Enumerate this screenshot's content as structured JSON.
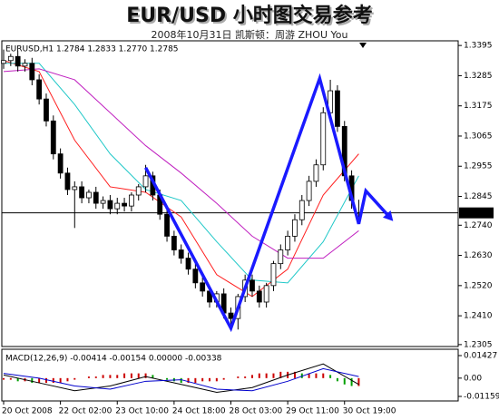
{
  "chart_data": {
    "type": "candlestick",
    "title": "EUR/USD  小时图交易参考",
    "subtitle": "2008年10月31日    凯斯顿：周游  ZHOU  You",
    "header": "EURUSD,H1  1.2784 1.2833 1.2770 1.2785",
    "categories": [
      "20 Oct 2008",
      null,
      null,
      null,
      null,
      null,
      null,
      null,
      "22 Oct 02:00",
      null,
      null,
      null,
      null,
      null,
      null,
      null,
      "23 Oct 10:00",
      null,
      null,
      null,
      null,
      null,
      null,
      null,
      "24 Oct 18:00",
      null,
      null,
      null,
      null,
      null,
      null,
      null,
      "28 Oct 03:00",
      null,
      null,
      null,
      null,
      null,
      null,
      null,
      "29 Oct 11:00",
      null,
      null,
      null,
      null,
      null,
      null,
      null,
      "30 Oct 19:00",
      null,
      null
    ],
    "open": [
      1.333,
      1.334,
      1.3355,
      1.332,
      1.333,
      1.327,
      1.32,
      1.312,
      1.3,
      1.293,
      1.287,
      1.288,
      1.284,
      1.286,
      1.282,
      1.283,
      1.28,
      1.282,
      1.281,
      1.285,
      1.288,
      1.292,
      1.285,
      1.278,
      1.27,
      1.265,
      1.262,
      1.258,
      1.253,
      1.25,
      1.246,
      1.249,
      1.242,
      1.24,
      1.248,
      1.254,
      1.25,
      1.246,
      1.252,
      1.26,
      1.265,
      1.27,
      1.276,
      1.283,
      1.29,
      1.296,
      1.315,
      1.323,
      1.31,
      1.292,
      1.2784
    ],
    "high": [
      1.338,
      1.3365,
      1.3375,
      1.3345,
      1.335,
      1.329,
      1.322,
      1.314,
      1.302,
      1.295,
      1.29,
      1.29,
      1.287,
      1.288,
      1.2845,
      1.285,
      1.284,
      1.284,
      1.286,
      1.289,
      1.296,
      1.2935,
      1.287,
      1.28,
      1.272,
      1.267,
      1.264,
      1.26,
      1.255,
      1.252,
      1.25,
      1.251,
      1.244,
      1.249,
      1.256,
      1.256,
      1.252,
      1.253,
      1.261,
      1.267,
      1.272,
      1.278,
      1.285,
      1.292,
      1.298,
      1.317,
      1.327,
      1.325,
      1.312,
      1.294,
      1.2833
    ],
    "low": [
      1.331,
      1.332,
      1.33,
      1.33,
      1.325,
      1.318,
      1.31,
      1.298,
      1.291,
      1.285,
      1.273,
      1.282,
      1.282,
      1.28,
      1.28,
      1.278,
      1.278,
      1.279,
      1.279,
      1.283,
      1.286,
      1.283,
      1.276,
      1.268,
      1.263,
      1.26,
      1.256,
      1.251,
      1.248,
      1.244,
      1.244,
      1.24,
      1.238,
      1.236,
      1.246,
      1.248,
      1.244,
      1.244,
      1.25,
      1.258,
      1.263,
      1.268,
      1.274,
      1.281,
      1.288,
      1.294,
      1.313,
      1.308,
      1.29,
      1.28,
      1.277
    ],
    "close": [
      1.334,
      1.3355,
      1.332,
      1.333,
      1.327,
      1.32,
      1.312,
      1.3,
      1.293,
      1.287,
      1.288,
      1.284,
      1.286,
      1.282,
      1.283,
      1.28,
      1.282,
      1.281,
      1.285,
      1.288,
      1.292,
      1.285,
      1.278,
      1.27,
      1.265,
      1.262,
      1.258,
      1.253,
      1.25,
      1.246,
      1.249,
      1.242,
      1.24,
      1.248,
      1.254,
      1.25,
      1.246,
      1.252,
      1.26,
      1.265,
      1.27,
      1.276,
      1.283,
      1.29,
      1.296,
      1.315,
      1.323,
      1.31,
      1.292,
      1.283,
      1.2785
    ],
    "up_color": "#ffffff",
    "down_color": "#000000",
    "series": [
      {
        "color": "#ff2020",
        "x": [
          0,
          5,
          10,
          15,
          20,
          25,
          30,
          35,
          40,
          45,
          50
        ],
        "values": [
          1.334,
          1.33,
          1.305,
          1.288,
          1.286,
          1.277,
          1.256,
          1.248,
          1.258,
          1.285,
          1.3
        ]
      },
      {
        "color": "#20c8c8",
        "x": [
          0,
          5,
          10,
          15,
          20,
          25,
          30,
          35,
          40,
          45,
          50
        ],
        "values": [
          1.333,
          1.333,
          1.318,
          1.3,
          1.287,
          1.283,
          1.268,
          1.254,
          1.253,
          1.268,
          1.292
        ]
      },
      {
        "color": "#c020c0",
        "x": [
          0,
          5,
          10,
          15,
          20,
          25,
          30,
          35,
          40,
          45,
          50
        ],
        "values": [
          1.33,
          1.331,
          1.327,
          1.315,
          1.303,
          1.293,
          1.282,
          1.27,
          1.262,
          1.262,
          1.272
        ]
      }
    ],
    "xlim": [
      0,
      64
    ],
    "ylim": [
      1.2298,
      1.3412
    ],
    "yticks": [
      1.3395,
      1.3285,
      1.3175,
      1.3065,
      1.2955,
      1.2845,
      {
        "value": 1.274,
        "label": "1.2740"
      },
      {
        "value": 1.263,
        "label": "1.2630"
      },
      {
        "value": 1.252,
        "label": "1.2520"
      },
      {
        "value": 1.241,
        "label": "1.2410"
      },
      1.2305
    ],
    "current_price": 1.2785,
    "trend_arrow": {
      "color": "#1a1aff",
      "x": [
        20,
        32,
        44.5,
        50,
        51,
        54.5
      ],
      "y": [
        1.295,
        1.2365,
        1.3275,
        1.2745,
        1.2865,
        1.2765
      ]
    },
    "macd": {
      "label": "MACD(12,26,9) -0.00414 -0.00154 0.00000 -0.00338",
      "ylim": [
        -0.01446,
        0.01829
      ],
      "yticks": [
        0.01427,
        {
          "value": 0,
          "label": "0.00"
        },
        -0.01159
      ],
      "x": [
        0,
        5,
        10,
        15,
        20,
        25,
        30,
        35,
        40,
        45,
        50
      ],
      "main": {
        "color": "#000000",
        "values": [
          0.002,
          -0.003,
          -0.008,
          -0.005,
          0.001,
          -0.004,
          -0.009,
          -0.006,
          0.002,
          0.009,
          -0.004
        ]
      },
      "signal": {
        "color": "#0000cc",
        "values": [
          0.003,
          0.0,
          -0.005,
          -0.007,
          -0.002,
          -0.001,
          -0.007,
          -0.008,
          -0.002,
          0.006,
          0.001
        ]
      },
      "histogram": [
        -0.001,
        -0.001,
        -0.002,
        -0.002,
        -0.003,
        -0.003,
        -0.003,
        -0.003,
        -0.003,
        -0.002,
        -0.001,
        0.0,
        0.001,
        0.001,
        0.002,
        0.002,
        0.002,
        0.003,
        0.003,
        0.003,
        0.003,
        0.002,
        0.0,
        -0.001,
        -0.002,
        -0.003,
        -0.003,
        -0.003,
        -0.002,
        -0.002,
        -0.002,
        -0.001,
        0.0,
        0.001,
        0.001,
        0.002,
        0.003,
        0.003,
        0.003,
        0.004,
        0.004,
        0.004,
        0.003,
        0.003,
        0.003,
        0.003,
        0.002,
        -0.002,
        -0.004,
        -0.005,
        -0.005
      ],
      "up_color": "#cc0000",
      "down_color": "#00a000"
    }
  }
}
